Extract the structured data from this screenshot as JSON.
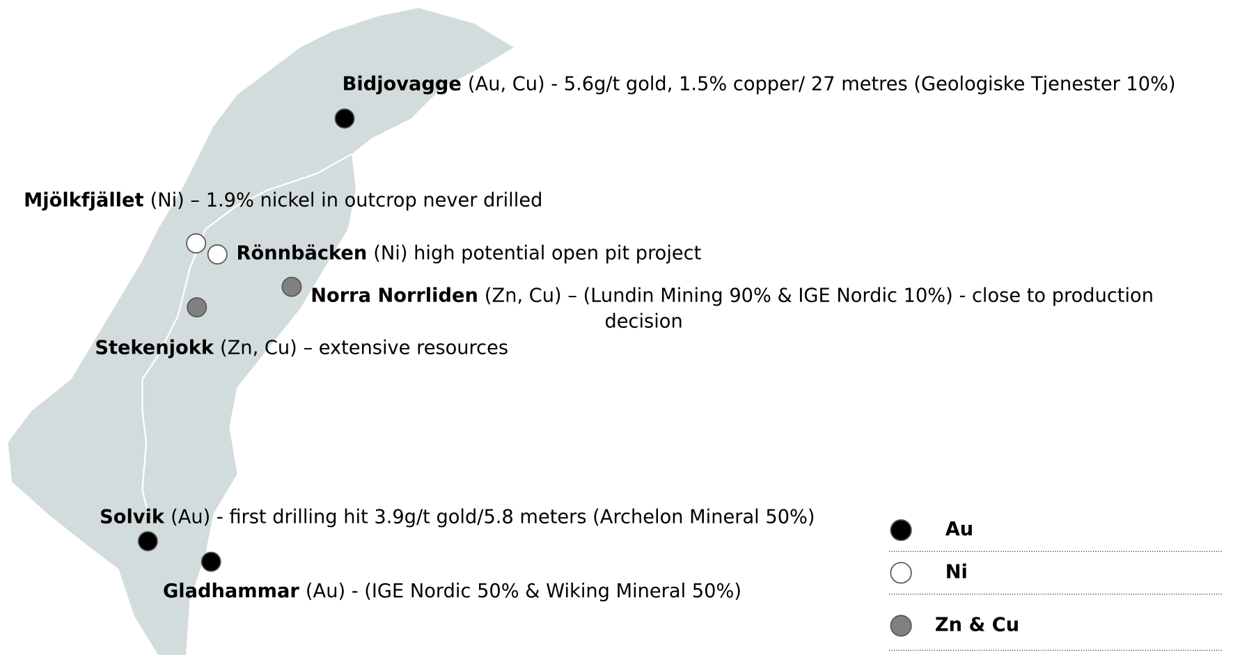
{
  "projects": [
    {
      "name": "Bidjovagge",
      "detail": [
        "(Au, Cu) - 5.6g/t gold, 1.5% copper/ 27 metres (Geologiske Tjenester 10%)"
      ],
      "color": "#000000"
    },
    {
      "name": "Mjölkfjället",
      "detail": [
        "(Ni) – 1.9% nickel in outcrop never drilled"
      ],
      "color": "#ffffff"
    },
    {
      "name": "Rönnbäcken",
      "detail": [
        "(Ni) high potential open pit project"
      ],
      "color": "#ffffff"
    },
    {
      "name": "Norra Norrliden",
      "detail": [
        "(Zn, Cu) – (Lundin Mining 90% & IGE Nordic 10%) - close to production",
        "decision"
      ],
      "color": "#808080"
    },
    {
      "name": "Stekenjokk",
      "detail": [
        "(Zn, Cu) – extensive resources"
      ],
      "color": "#808080"
    },
    {
      "name": "Solvik",
      "detail": [
        "(Au) - first drilling hit 3.9g/t gold/5.8 meters (Archelon Mineral 50%)"
      ],
      "color": "#000000"
    },
    {
      "name": "Gladhammar",
      "detail": [
        "(Au) - (IGE Nordic 50% & Wiking Mineral 50%)"
      ],
      "color": "#000000"
    }
  ],
  "legend": [
    {
      "label": "Au",
      "color": "#000000"
    },
    {
      "label": "Ni",
      "color": "#ffffff"
    },
    {
      "label": "Zn & Cu",
      "color": "#808080"
    }
  ]
}
